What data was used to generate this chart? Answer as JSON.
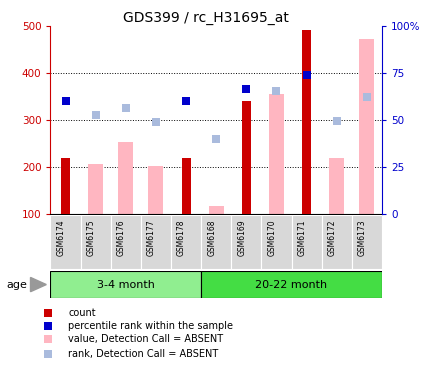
{
  "title": "GDS399 / rc_H31695_at",
  "samples": [
    "GSM6174",
    "GSM6175",
    "GSM6176",
    "GSM6177",
    "GSM6178",
    "GSM6168",
    "GSM6169",
    "GSM6170",
    "GSM6171",
    "GSM6172",
    "GSM6173"
  ],
  "group1_label": "3-4 month",
  "group1_color": "#90EE90",
  "group1_indices": [
    0,
    1,
    2,
    3,
    4
  ],
  "group2_label": "20-22 month",
  "group2_color": "#44DD44",
  "group2_indices": [
    5,
    6,
    7,
    8,
    9,
    10
  ],
  "count": [
    220,
    null,
    null,
    null,
    220,
    null,
    340,
    null,
    490,
    null,
    null
  ],
  "percentile_rank": [
    340,
    null,
    null,
    null,
    340,
    null,
    365,
    null,
    395,
    null,
    null
  ],
  "value_absent": [
    null,
    207,
    252,
    202,
    null,
    118,
    null,
    355,
    null,
    220,
    472
  ],
  "rank_absent": [
    null,
    310,
    325,
    296,
    null,
    260,
    null,
    362,
    null,
    298,
    348
  ],
  "ylim_left": [
    100,
    500
  ],
  "ylim_right": [
    0,
    100
  ],
  "yticks_left": [
    100,
    200,
    300,
    400,
    500
  ],
  "yticks_right": [
    0,
    25,
    50,
    75,
    100
  ],
  "yticklabels_right": [
    "0",
    "25",
    "50",
    "75",
    "100%"
  ],
  "hlines": [
    200,
    300,
    400
  ],
  "count_color": "#CC0000",
  "percentile_color": "#0000CC",
  "value_absent_color": "#FFB6C1",
  "rank_absent_color": "#AABBDD",
  "left_axis_color": "#CC0000",
  "right_axis_color": "#0000CC",
  "bar_bottom": 100,
  "count_bar_width": 0.3,
  "absent_bar_width": 0.5,
  "marker_size": 6
}
